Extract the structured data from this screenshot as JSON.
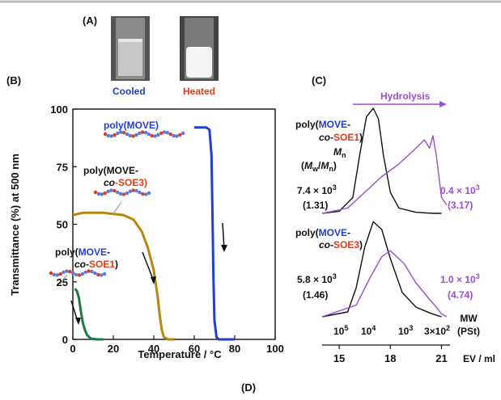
{
  "panel_labels": {
    "a": "(A)",
    "b": "(B)",
    "c": "(C)",
    "d": "(D)"
  },
  "vials": {
    "cooled": "Cooled",
    "heated": "Heated",
    "cooled_color": "#1f3fd0",
    "heated_color": "#e23b17"
  },
  "colors": {
    "blue": "#1f3fd0",
    "red": "#e23b17",
    "purple": "#9b4ed0",
    "brown": "#b8860b",
    "green": "#1e7a3c"
  },
  "chart_data": [
    {
      "type": "line",
      "xlabel": "Temperature / °C",
      "ylabel": "Transmittance (%) at 500 nm",
      "xlim": [
        0,
        100
      ],
      "ylim": [
        0,
        100
      ],
      "xticks": [
        0,
        20,
        40,
        60,
        80,
        100
      ],
      "yticks": [
        0,
        25,
        50,
        75,
        100
      ],
      "annotations": {
        "move": "poly(MOVE)",
        "soe3_a": "poly(MOVE-",
        "soe3_b": "co",
        "soe3_c": "-SOE3)",
        "soe1_a": "poly(MOVE-",
        "soe1_b": "co",
        "soe1_c": "-SOE1)"
      },
      "series": [
        {
          "color": "#1f3fd0",
          "points": [
            [
              60,
              92
            ],
            [
              63,
              92
            ],
            [
              66,
              92
            ],
            [
              67.5,
              91
            ],
            [
              68.5,
              80
            ],
            [
              69,
              55
            ],
            [
              69.5,
              25
            ],
            [
              70,
              8
            ],
            [
              71,
              1
            ],
            [
              72,
              0
            ],
            [
              80,
              0
            ]
          ]
        },
        {
          "color": "#b8860b",
          "points": [
            [
              0,
              54
            ],
            [
              5,
              55
            ],
            [
              10,
              55
            ],
            [
              15,
              55
            ],
            [
              20,
              54.5
            ],
            [
              25,
              54
            ],
            [
              30,
              52
            ],
            [
              34,
              47
            ],
            [
              37,
              40
            ],
            [
              40,
              30
            ],
            [
              42,
              18
            ],
            [
              43,
              10
            ],
            [
              44,
              4
            ],
            [
              45,
              1
            ],
            [
              47,
              0
            ],
            [
              50,
              0
            ]
          ]
        },
        {
          "color": "#1e7a3c",
          "points": [
            [
              1,
              22
            ],
            [
              2,
              21
            ],
            [
              3,
              18
            ],
            [
              4,
              12
            ],
            [
              5,
              7
            ],
            [
              6,
              4
            ],
            [
              7,
              2
            ],
            [
              8,
              1
            ],
            [
              9,
              0.3
            ],
            [
              12,
              0
            ],
            [
              15,
              0
            ]
          ]
        }
      ]
    },
    {
      "type": "line",
      "title": "Hydrolysis",
      "xlabel": "EV / ml",
      "x_ticks": [
        "15",
        "18",
        "21"
      ],
      "mw_label": "MW",
      "mw_unit": "(PSt)",
      "mw_ticks": [
        "10^5",
        "10^4",
        "10^3",
        "3×10^2"
      ],
      "annotations": {
        "top_name_a": "poly(MOVE-",
        "top_name_b": "co",
        "top_name_c": "-SOE1)",
        "mn_label": "Mn",
        "mw_mn_label": "(Mw/Mn)",
        "top_before_mn": "7.4 × 10^3",
        "top_before_pdi": "(1.31)",
        "top_after_mn": "0.4 × 10^3",
        "top_after_pdi": "(3.17)",
        "bot_name_a": "poly(MOVE-",
        "bot_name_b": "co",
        "bot_name_c": "-SOE3)",
        "bot_before_mn": "5.8 × 10^3",
        "bot_before_pdi": "(1.46)",
        "bot_after_mn": "1.0 × 10^3",
        "bot_after_pdi": "(4.74)"
      },
      "series": [
        {
          "color": "#111111",
          "ev": [
            14.0,
            15.0,
            15.8,
            16.2,
            16.6,
            17.0,
            17.3,
            17.6,
            18.0,
            18.5,
            19.5,
            20.5,
            21.0
          ]
        },
        {
          "color": "#9b4ed0",
          "ev": [
            14.0,
            15.5,
            16.5,
            17.5,
            18.5,
            19.5,
            20.0,
            20.3,
            20.5,
            20.7,
            21.0,
            21.3
          ]
        },
        {
          "color": "#111111",
          "ev": [
            14.0,
            15.5,
            16.0,
            16.5,
            17.0,
            17.5,
            18.0,
            18.7,
            19.5,
            20.3,
            20.8,
            21.0
          ]
        },
        {
          "color": "#9b4ed0",
          "ev": [
            14.0,
            16.0,
            16.8,
            17.5,
            18.0,
            18.8,
            19.5,
            20.2,
            20.6,
            21.0,
            21.3
          ]
        }
      ]
    }
  ]
}
